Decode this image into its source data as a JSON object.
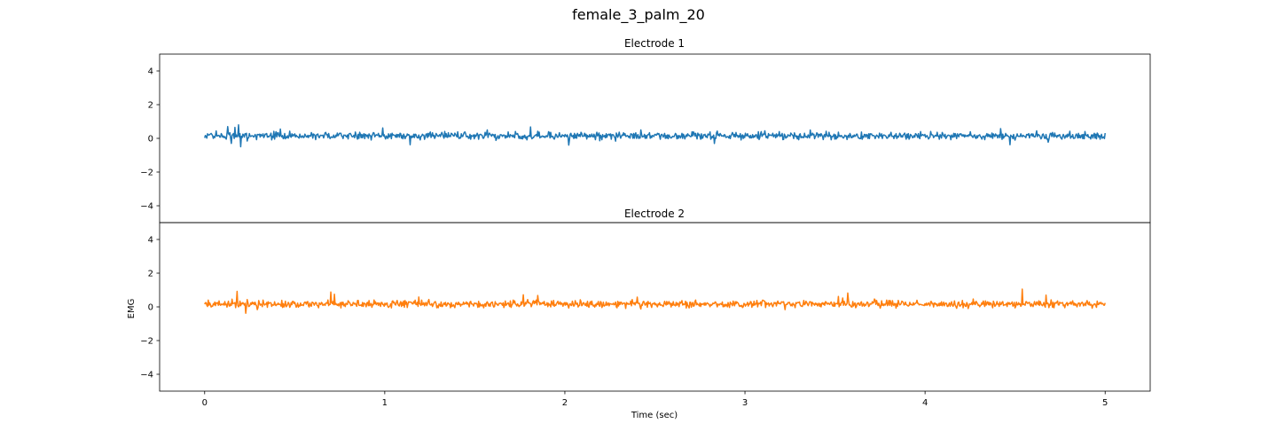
{
  "figure": {
    "suptitle": "female_3_palm_20",
    "background": "#ffffff"
  },
  "chart_data": [
    {
      "type": "line",
      "title": "Electrode 1",
      "xlabel": "",
      "ylabel": "",
      "xlim": [
        -0.25,
        5.25
      ],
      "ylim": [
        -5,
        5
      ],
      "xticks": [
        0,
        1,
        2,
        3,
        4,
        5
      ],
      "yticks": [
        -4,
        -2,
        0,
        2,
        4
      ],
      "ytick_labels": [
        "−4",
        "−2",
        "0",
        "2",
        "4"
      ],
      "show_xticks": false,
      "grid": false,
      "series": [
        {
          "color": "#1f77b4",
          "x_range": [
            0,
            5
          ],
          "num_points": 1250,
          "baseline": 0.15,
          "noise_amplitude": 0.17,
          "spikes": [
            {
              "x": 0.13,
              "y": 0.7
            },
            {
              "x": 0.17,
              "y": 0.65
            },
            {
              "x": 0.19,
              "y": 0.8
            },
            {
              "x": 0.2,
              "y": -0.5
            },
            {
              "x": 0.15,
              "y": -0.3
            },
            {
              "x": 0.42,
              "y": 0.55
            },
            {
              "x": 0.99,
              "y": 0.62
            },
            {
              "x": 1.14,
              "y": -0.38
            },
            {
              "x": 1.57,
              "y": 0.5
            },
            {
              "x": 1.81,
              "y": 0.68
            },
            {
              "x": 2.02,
              "y": -0.4
            },
            {
              "x": 2.42,
              "y": 0.5
            },
            {
              "x": 3.11,
              "y": 0.45
            },
            {
              "x": 4.42,
              "y": 0.58
            },
            {
              "x": 4.47,
              "y": -0.38
            },
            {
              "x": 4.62,
              "y": 0.45
            }
          ]
        }
      ]
    },
    {
      "type": "line",
      "title": "Electrode 2",
      "xlabel": "Time (sec)",
      "ylabel": "EMG",
      "xlim": [
        -0.25,
        5.25
      ],
      "ylim": [
        -5,
        5
      ],
      "xticks": [
        0,
        1,
        2,
        3,
        4,
        5
      ],
      "yticks": [
        -4,
        -2,
        0,
        2,
        4
      ],
      "ytick_labels": [
        "−4",
        "−2",
        "0",
        "2",
        "4"
      ],
      "show_xticks": true,
      "grid": false,
      "series": [
        {
          "color": "#ff7f0e",
          "x_range": [
            0,
            5
          ],
          "num_points": 1250,
          "baseline": 0.17,
          "noise_amplitude": 0.17,
          "spikes": [
            {
              "x": 0.18,
              "y": 0.92
            },
            {
              "x": 0.23,
              "y": -0.38
            },
            {
              "x": 0.7,
              "y": 0.88
            },
            {
              "x": 0.72,
              "y": 0.75
            },
            {
              "x": 1.77,
              "y": 0.72
            },
            {
              "x": 1.85,
              "y": 0.68
            },
            {
              "x": 2.4,
              "y": 0.58
            },
            {
              "x": 3.52,
              "y": 0.62
            },
            {
              "x": 3.57,
              "y": 0.82
            },
            {
              "x": 4.54,
              "y": 1.05
            },
            {
              "x": 4.67,
              "y": 0.7
            }
          ]
        }
      ]
    }
  ]
}
